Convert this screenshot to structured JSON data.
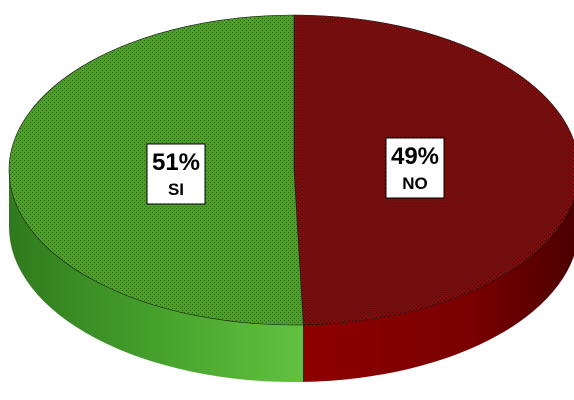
{
  "chart_data": {
    "type": "pie",
    "style": "3d",
    "categories": [
      "SI",
      "NO"
    ],
    "values": [
      51,
      49
    ],
    "unit": "%",
    "data_labels": [
      {
        "category": "SI",
        "percent": "51%",
        "name": "SI"
      },
      {
        "category": "NO",
        "percent": "49%",
        "name": "NO"
      }
    ],
    "colors": {
      "SI": "#4f9d2d",
      "NO": "#7d0d0d"
    },
    "title": "",
    "legend": "none",
    "grid": false
  }
}
